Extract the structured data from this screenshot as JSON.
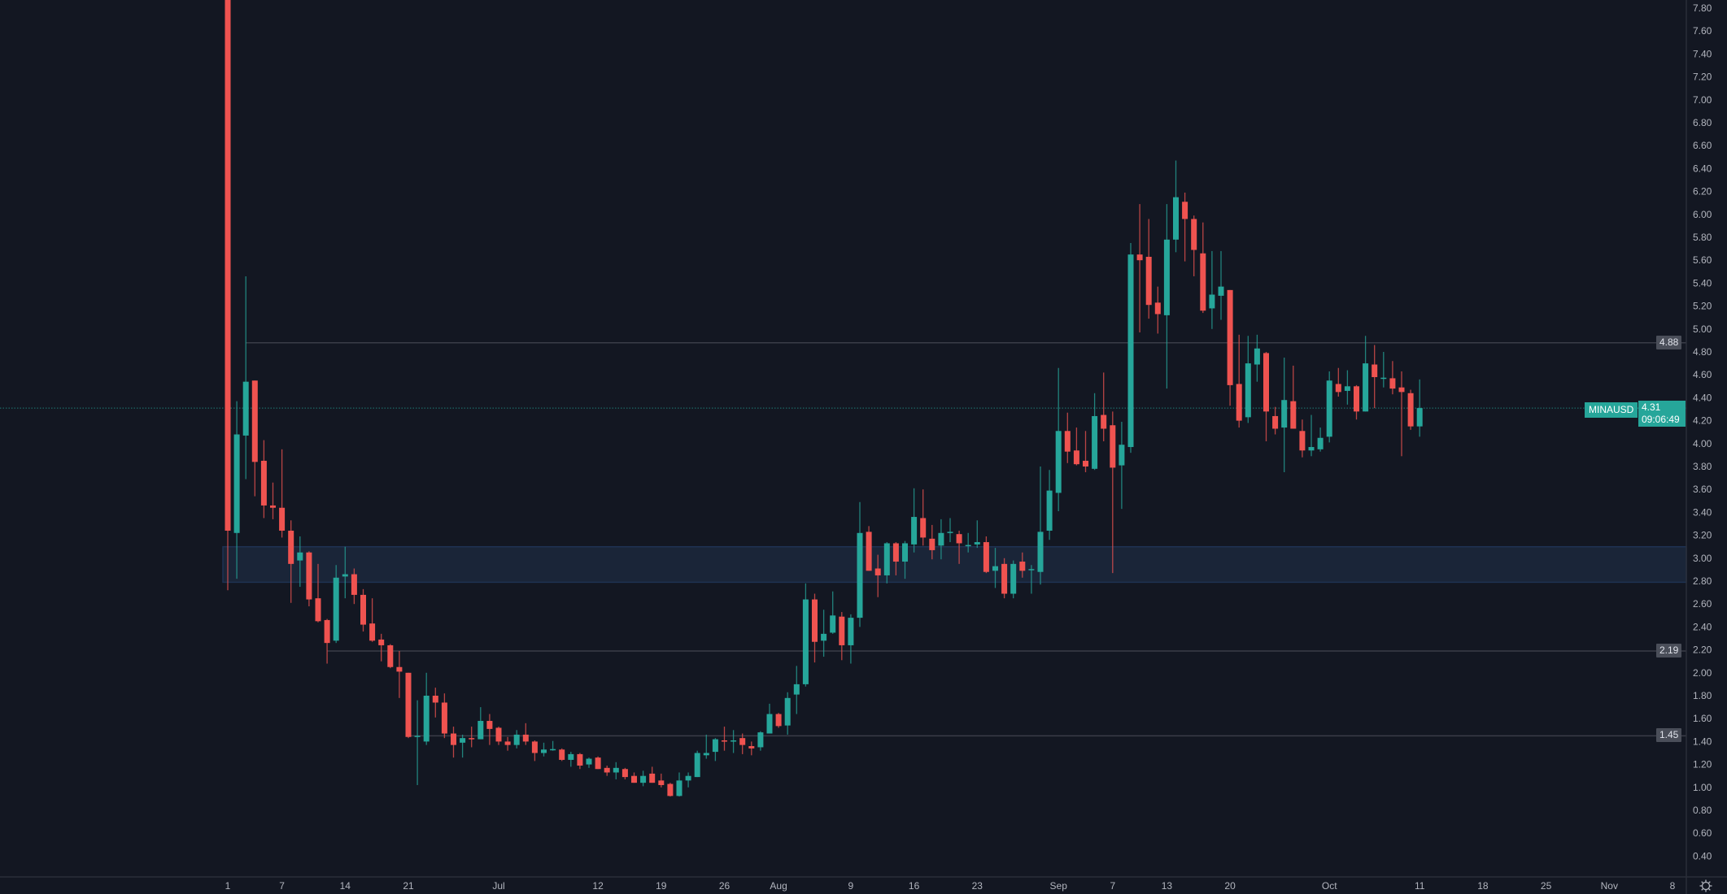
{
  "chart_data": {
    "type": "candlestick",
    "symbol": "MINAUSD",
    "last_price": "4.31",
    "countdown": "09:06:49",
    "ylim": [
      0.3,
      7.87
    ],
    "colors": {
      "up": "#26a69a",
      "down": "#ef5350",
      "background": "#131722",
      "level_line": "#3a3d48",
      "zone_fill": "#1a2538",
      "zone_border": "#1e3253"
    },
    "horizontal_levels": [
      {
        "label": "4.88",
        "price": 4.88,
        "start_index": 2
      },
      {
        "label": "2.19",
        "price": 2.19,
        "start_index": 11
      },
      {
        "label": "1.45",
        "price": 1.45,
        "start_index": 20
      }
    ],
    "zone": {
      "low": 2.79,
      "high": 3.1,
      "start_index": 0
    },
    "y_ticks": [
      "7.80",
      "7.60",
      "7.40",
      "7.20",
      "7.00",
      "6.80",
      "6.60",
      "6.40",
      "6.20",
      "6.00",
      "5.80",
      "5.60",
      "5.40",
      "5.20",
      "5.00",
      "4.80",
      "4.60",
      "4.40",
      "4.20",
      "4.00",
      "3.80",
      "3.60",
      "3.40",
      "3.20",
      "3.00",
      "2.80",
      "2.60",
      "2.40",
      "2.20",
      "2.00",
      "1.80",
      "1.60",
      "1.40",
      "1.20",
      "1.00",
      "0.80",
      "0.60",
      "0.40"
    ],
    "x_ticks": [
      {
        "label": "1",
        "index": 0
      },
      {
        "label": "7",
        "index": 6
      },
      {
        "label": "14",
        "index": 13
      },
      {
        "label": "21",
        "index": 20
      },
      {
        "label": "Jul",
        "index": 30
      },
      {
        "label": "12",
        "index": 41
      },
      {
        "label": "19",
        "index": 48
      },
      {
        "label": "26",
        "index": 55
      },
      {
        "label": "Aug",
        "index": 61
      },
      {
        "label": "9",
        "index": 69
      },
      {
        "label": "16",
        "index": 76
      },
      {
        "label": "23",
        "index": 83
      },
      {
        "label": "Sep",
        "index": 92
      },
      {
        "label": "7",
        "index": 98
      },
      {
        "label": "13",
        "index": 104
      },
      {
        "label": "20",
        "index": 111
      },
      {
        "label": "Oct",
        "index": 122
      },
      {
        "label": "11",
        "index": 132
      },
      {
        "label": "18",
        "index": 139
      },
      {
        "label": "25",
        "index": 146
      },
      {
        "label": "Nov",
        "index": 153
      },
      {
        "label": "8",
        "index": 160
      }
    ],
    "candle_fields": [
      "open",
      "high",
      "low",
      "close"
    ],
    "candles": [
      [
        8.6,
        8.8,
        2.72,
        3.24
      ],
      [
        3.22,
        4.37,
        2.82,
        4.08
      ],
      [
        4.07,
        5.46,
        3.69,
        4.54
      ],
      [
        4.55,
        4.55,
        3.54,
        3.84
      ],
      [
        3.85,
        4.03,
        3.35,
        3.46
      ],
      [
        3.46,
        3.66,
        3.34,
        3.44
      ],
      [
        3.44,
        3.95,
        3.18,
        3.24
      ],
      [
        3.24,
        3.33,
        2.61,
        2.95
      ],
      [
        2.98,
        3.19,
        2.75,
        3.05
      ],
      [
        3.05,
        3.06,
        2.58,
        2.64
      ],
      [
        2.65,
        2.95,
        2.44,
        2.45
      ],
      [
        2.46,
        2.47,
        2.08,
        2.26
      ],
      [
        2.28,
        2.94,
        2.26,
        2.83
      ],
      [
        2.84,
        3.1,
        2.65,
        2.86
      ],
      [
        2.86,
        2.91,
        2.6,
        2.68
      ],
      [
        2.68,
        2.73,
        2.36,
        2.42
      ],
      [
        2.43,
        2.65,
        2.27,
        2.28
      ],
      [
        2.29,
        2.34,
        2.1,
        2.24
      ],
      [
        2.24,
        2.25,
        2.04,
        2.05
      ],
      [
        2.05,
        2.19,
        1.78,
        2.01
      ],
      [
        2.0,
        2.0,
        1.43,
        1.44
      ],
      [
        1.445,
        1.76,
        1.02,
        1.45
      ],
      [
        1.4,
        2.0,
        1.37,
        1.8
      ],
      [
        1.8,
        1.87,
        1.61,
        1.74
      ],
      [
        1.74,
        1.82,
        1.43,
        1.47
      ],
      [
        1.47,
        1.53,
        1.26,
        1.37
      ],
      [
        1.39,
        1.46,
        1.26,
        1.43
      ],
      [
        1.43,
        1.53,
        1.35,
        1.42
      ],
      [
        1.42,
        1.7,
        1.42,
        1.58
      ],
      [
        1.58,
        1.64,
        1.37,
        1.51
      ],
      [
        1.52,
        1.53,
        1.37,
        1.4
      ],
      [
        1.4,
        1.44,
        1.32,
        1.37
      ],
      [
        1.37,
        1.5,
        1.34,
        1.46
      ],
      [
        1.46,
        1.56,
        1.37,
        1.4
      ],
      [
        1.4,
        1.41,
        1.23,
        1.3
      ],
      [
        1.3,
        1.39,
        1.27,
        1.33
      ],
      [
        1.33,
        1.405,
        1.32,
        1.334
      ],
      [
        1.33,
        1.34,
        1.23,
        1.24
      ],
      [
        1.24,
        1.31,
        1.18,
        1.29
      ],
      [
        1.29,
        1.3,
        1.16,
        1.19
      ],
      [
        1.2,
        1.26,
        1.17,
        1.25
      ],
      [
        1.26,
        1.27,
        1.16,
        1.16
      ],
      [
        1.17,
        1.19,
        1.1,
        1.13
      ],
      [
        1.13,
        1.22,
        1.07,
        1.17
      ],
      [
        1.16,
        1.17,
        1.07,
        1.09
      ],
      [
        1.1,
        1.13,
        1.04,
        1.04
      ],
      [
        1.04,
        1.145,
        1.01,
        1.1
      ],
      [
        1.12,
        1.18,
        1.04,
        1.04
      ],
      [
        1.06,
        1.12,
        1.0,
        1.02
      ],
      [
        1.03,
        1.04,
        0.92,
        0.925
      ],
      [
        0.925,
        1.13,
        0.92,
        1.06
      ],
      [
        1.06,
        1.13,
        1.0,
        1.1
      ],
      [
        1.09,
        1.32,
        1.09,
        1.3
      ],
      [
        1.28,
        1.46,
        1.25,
        1.3
      ],
      [
        1.31,
        1.43,
        1.23,
        1.42
      ],
      [
        1.41,
        1.53,
        1.32,
        1.4
      ],
      [
        1.4,
        1.5,
        1.3,
        1.41
      ],
      [
        1.43,
        1.47,
        1.29,
        1.37
      ],
      [
        1.36,
        1.4,
        1.28,
        1.34
      ],
      [
        1.35,
        1.49,
        1.32,
        1.48
      ],
      [
        1.47,
        1.73,
        1.47,
        1.64
      ],
      [
        1.64,
        1.65,
        1.52,
        1.535
      ],
      [
        1.54,
        1.83,
        1.46,
        1.78
      ],
      [
        1.81,
        2.06,
        1.64,
        1.9
      ],
      [
        1.9,
        2.78,
        1.88,
        2.64
      ],
      [
        2.64,
        2.69,
        2.09,
        2.27
      ],
      [
        2.28,
        2.55,
        2.14,
        2.34
      ],
      [
        2.35,
        2.71,
        2.34,
        2.5
      ],
      [
        2.49,
        2.53,
        2.11,
        2.24
      ],
      [
        2.24,
        2.51,
        2.08,
        2.48
      ],
      [
        2.48,
        3.49,
        2.4,
        3.22
      ],
      [
        3.23,
        3.28,
        2.89,
        2.89
      ],
      [
        2.91,
        3.03,
        2.66,
        2.85
      ],
      [
        2.85,
        3.14,
        2.78,
        3.13
      ],
      [
        3.13,
        3.14,
        2.85,
        2.97
      ],
      [
        2.97,
        3.15,
        2.82,
        3.13
      ],
      [
        3.12,
        3.61,
        3.05,
        3.36
      ],
      [
        3.35,
        3.6,
        3.11,
        3.18
      ],
      [
        3.17,
        3.29,
        2.99,
        3.07
      ],
      [
        3.11,
        3.34,
        2.99,
        3.22
      ],
      [
        3.22,
        3.35,
        3.14,
        3.23
      ],
      [
        3.21,
        3.24,
        2.95,
        3.13
      ],
      [
        3.11,
        3.22,
        3.05,
        3.115
      ],
      [
        3.12,
        3.33,
        3.09,
        3.14
      ],
      [
        3.14,
        3.19,
        2.87,
        2.88
      ],
      [
        2.89,
        3.09,
        2.74,
        2.93
      ],
      [
        2.95,
        3.0,
        2.65,
        2.69
      ],
      [
        2.69,
        2.98,
        2.65,
        2.95
      ],
      [
        2.97,
        3.05,
        2.83,
        2.89
      ],
      [
        2.9,
        2.94,
        2.69,
        2.905
      ],
      [
        2.88,
        3.8,
        2.77,
        3.23
      ],
      [
        3.24,
        3.77,
        3.16,
        3.59
      ],
      [
        3.57,
        4.66,
        3.41,
        4.11
      ],
      [
        4.11,
        4.27,
        3.83,
        3.93
      ],
      [
        3.94,
        4.14,
        3.81,
        3.82
      ],
      [
        3.85,
        4.11,
        3.75,
        3.8
      ],
      [
        3.78,
        4.44,
        3.77,
        4.24
      ],
      [
        4.25,
        4.62,
        4.02,
        4.13
      ],
      [
        4.16,
        4.28,
        2.87,
        3.79
      ],
      [
        3.81,
        4.19,
        3.43,
        3.99
      ],
      [
        3.97,
        5.75,
        3.92,
        5.65
      ],
      [
        5.65,
        6.09,
        4.97,
        5.6
      ],
      [
        5.63,
        5.96,
        5.09,
        5.21
      ],
      [
        5.23,
        5.37,
        4.96,
        5.13
      ],
      [
        5.12,
        6.09,
        4.48,
        5.78
      ],
      [
        5.78,
        6.47,
        5.67,
        6.15
      ],
      [
        6.11,
        6.19,
        5.59,
        5.96
      ],
      [
        5.96,
        5.99,
        5.46,
        5.69
      ],
      [
        5.66,
        5.93,
        5.14,
        5.16
      ],
      [
        5.18,
        5.68,
        5.0,
        5.3
      ],
      [
        5.29,
        5.68,
        5.08,
        5.37
      ],
      [
        5.34,
        5.34,
        4.33,
        4.51
      ],
      [
        4.52,
        4.95,
        4.14,
        4.2
      ],
      [
        4.23,
        4.94,
        4.18,
        4.7
      ],
      [
        4.69,
        4.95,
        4.54,
        4.83
      ],
      [
        4.79,
        4.8,
        4.02,
        4.28
      ],
      [
        4.24,
        4.32,
        4.08,
        4.13
      ],
      [
        4.14,
        4.75,
        3.75,
        4.38
      ],
      [
        4.37,
        4.68,
        4.13,
        4.13
      ],
      [
        4.11,
        4.21,
        3.88,
        3.94
      ],
      [
        3.94,
        4.25,
        3.89,
        3.97
      ],
      [
        3.95,
        4.14,
        3.93,
        4.05
      ],
      [
        4.06,
        4.63,
        4.01,
        4.55
      ],
      [
        4.52,
        4.66,
        4.41,
        4.45
      ],
      [
        4.46,
        4.64,
        4.34,
        4.5
      ],
      [
        4.5,
        4.51,
        4.21,
        4.28
      ],
      [
        4.28,
        4.94,
        4.28,
        4.7
      ],
      [
        4.69,
        4.86,
        4.31,
        4.58
      ],
      [
        4.57,
        4.8,
        4.49,
        4.575
      ],
      [
        4.57,
        4.72,
        4.43,
        4.48
      ],
      [
        4.49,
        4.63,
        3.89,
        4.45
      ],
      [
        4.44,
        4.47,
        4.12,
        4.15
      ],
      [
        4.15,
        4.56,
        4.06,
        4.31
      ]
    ]
  },
  "icons": {
    "settings": "gear-icon"
  }
}
